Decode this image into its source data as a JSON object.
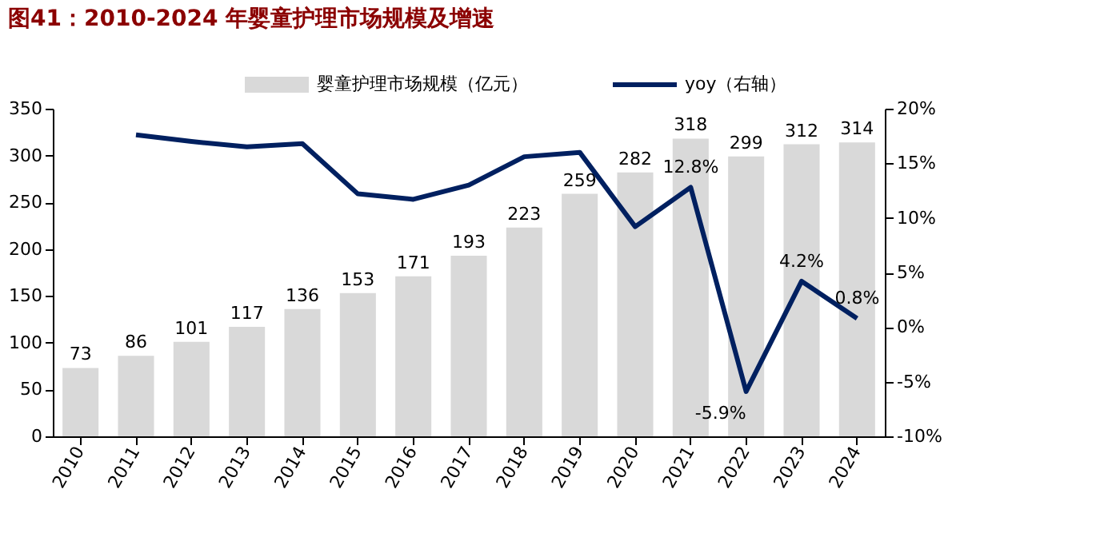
{
  "chart_data": {
    "type": "bar",
    "title": "图41：2010-2024 年婴童护理市场规模及增速",
    "categories": [
      "2010",
      "2011",
      "2012",
      "2013",
      "2014",
      "2015",
      "2016",
      "2017",
      "2018",
      "2019",
      "2020",
      "2021",
      "2022",
      "2023",
      "2024"
    ],
    "series": [
      {
        "name": "婴童护理市场规模（亿元）",
        "color": "#d9d9d9",
        "values": [
          73,
          86,
          101,
          117,
          136,
          153,
          171,
          193,
          223,
          259,
          282,
          318,
          299,
          312,
          314
        ],
        "value_labels": [
          "73",
          "86",
          "101",
          "117",
          "136",
          "153",
          "171",
          "193",
          "223",
          "259",
          "282",
          "318",
          "299",
          "312",
          "314"
        ]
      },
      {
        "name": "yoy（右轴）",
        "type": "line",
        "axis": "y2",
        "color": "#002060",
        "values": [
          null,
          17.6,
          17.0,
          16.5,
          16.8,
          12.2,
          11.7,
          13.0,
          15.6,
          16.0,
          9.2,
          12.8,
          -5.9,
          4.2,
          0.8
        ],
        "value_labels": [
          null,
          null,
          null,
          null,
          null,
          null,
          null,
          null,
          null,
          null,
          null,
          "12.8%",
          "-5.9%",
          "4.2%",
          "0.8%"
        ]
      }
    ],
    "ylim": [
      0,
      350
    ],
    "yticks": [
      0,
      50,
      100,
      150,
      200,
      250,
      300,
      350
    ],
    "y2lim": [
      -10,
      20
    ],
    "y2ticks": [
      {
        "value": -10,
        "label": "-10%"
      },
      {
        "value": -5,
        "label": "-5%"
      },
      {
        "value": 0,
        "label": "0%"
      },
      {
        "value": 5,
        "label": "5%"
      },
      {
        "value": 10,
        "label": "10%"
      },
      {
        "value": 15,
        "label": "15%"
      },
      {
        "value": 20,
        "label": "20%"
      }
    ],
    "grid": false,
    "legend": "top",
    "marker": "none",
    "line_style": "solid"
  }
}
